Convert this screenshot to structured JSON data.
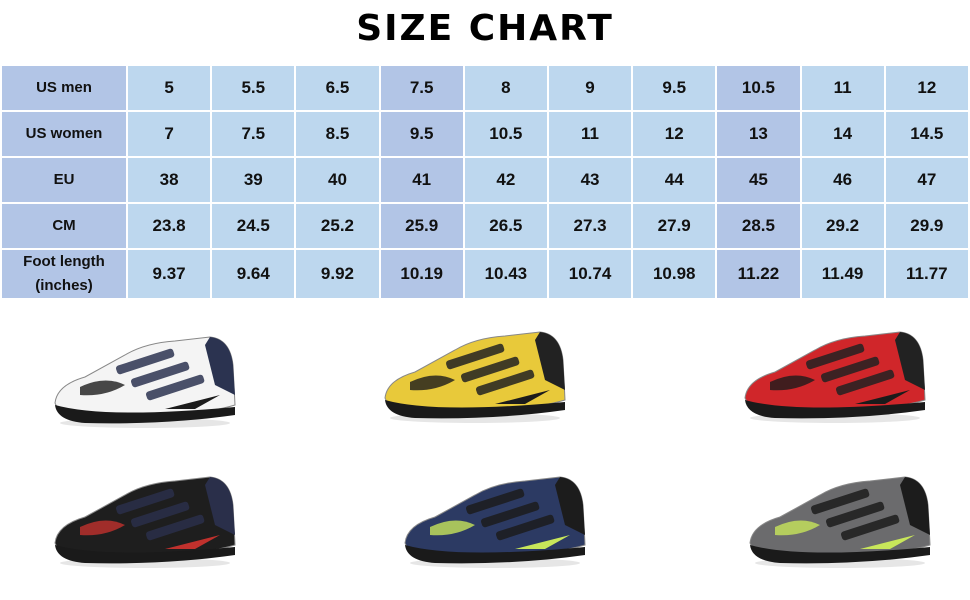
{
  "title": "SIZE CHART",
  "size_table": {
    "highlight_columns": [
      3,
      7
    ],
    "colors": {
      "cell": "#bdd7ee",
      "highlight": "#b2c5e6"
    },
    "rows": [
      {
        "label": "US men",
        "values": [
          "5",
          "5.5",
          "6.5",
          "7.5",
          "8",
          "9",
          "9.5",
          "10.5",
          "11",
          "12"
        ]
      },
      {
        "label": "US women",
        "values": [
          "7",
          "7.5",
          "8.5",
          "9.5",
          "10.5",
          "11",
          "12",
          "13",
          "14",
          "14.5"
        ]
      },
      {
        "label": "EU",
        "values": [
          "38",
          "39",
          "40",
          "41",
          "42",
          "43",
          "44",
          "45",
          "46",
          "47"
        ]
      },
      {
        "label": "CM",
        "values": [
          "23.8",
          "24.5",
          "25.2",
          "25.9",
          "26.5",
          "27.3",
          "27.9",
          "28.5",
          "29.2",
          "29.9"
        ]
      },
      {
        "label": "Foot length (inches)",
        "values": [
          "9.37",
          "9.64",
          "9.92",
          "10.19",
          "10.43",
          "10.74",
          "10.98",
          "11.22",
          "11.49",
          "11.77"
        ]
      }
    ]
  },
  "shoes": [
    {
      "name": "white",
      "upper": "#f4f4f4",
      "accent": "#1b1b1b",
      "trim": "#2b3350"
    },
    {
      "name": "yellow",
      "upper": "#e8c93a",
      "accent": "#1b1b1b",
      "trim": "#222"
    },
    {
      "name": "red",
      "upper": "#d0262a",
      "accent": "#1b1b1b",
      "trim": "#222"
    },
    {
      "name": "black",
      "upper": "#1e1e1e",
      "accent": "#c0312d",
      "trim": "#2a2f4a"
    },
    {
      "name": "navy",
      "upper": "#2c3a63",
      "accent": "#c8e65a",
      "trim": "#1c1c1c"
    },
    {
      "name": "gray",
      "upper": "#6b6b6d",
      "accent": "#c8e65a",
      "trim": "#1c1c1c"
    }
  ]
}
